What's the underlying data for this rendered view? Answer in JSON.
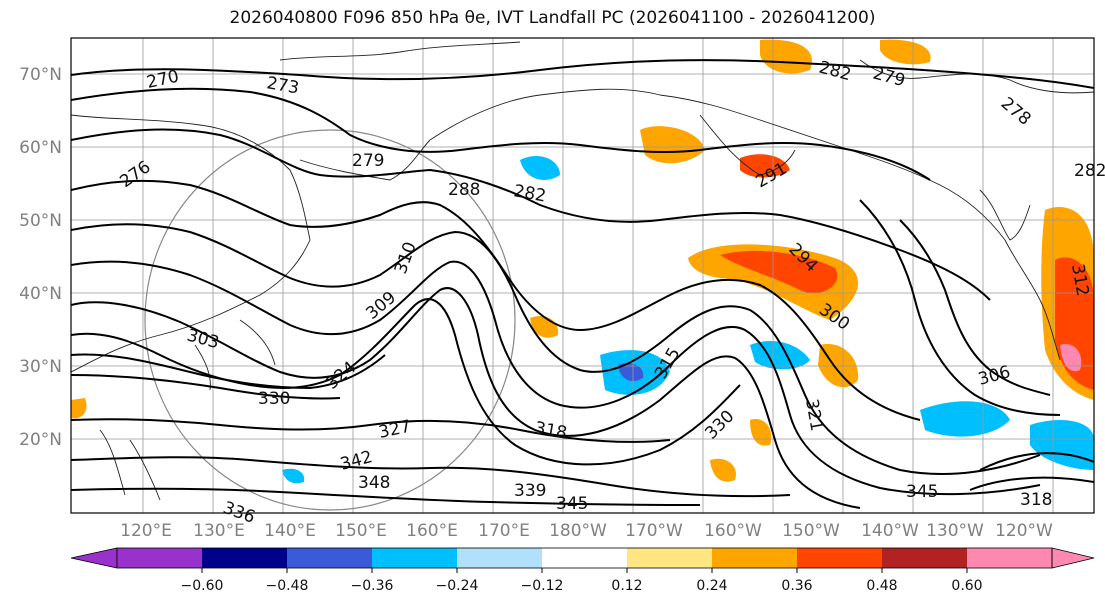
{
  "title_text": "2026040800 F096 850 hPa θe, IVT Landfall PC (2026041100 - 2026041200)",
  "lat_labels": [
    "70°N",
    "60°N",
    "50°N",
    "40°N",
    "30°N",
    "20°N"
  ],
  "lon_labels": [
    "120°E",
    "130°E",
    "140°E",
    "150°E",
    "160°E",
    "170°E",
    "180°W",
    "170°W",
    "160°W",
    "150°W",
    "140°W",
    "130°W",
    "120°W"
  ],
  "contour_labels": [
    "270",
    "273",
    "276",
    "279",
    "282",
    "282",
    "282",
    "279",
    "278",
    "288",
    "294",
    "291",
    "300",
    "303",
    "306",
    "309",
    "310",
    "312",
    "315",
    "318",
    "318",
    "321",
    "324",
    "327",
    "330",
    "330",
    "336",
    "339",
    "342",
    "345",
    "345",
    "348"
  ],
  "colorbar": {
    "ticks": [
      "−0.60",
      "−0.48",
      "−0.36",
      "−0.24",
      "−0.12",
      "0.12",
      "0.24",
      "0.36",
      "0.48",
      "0.60"
    ],
    "colors": [
      "#9932cc",
      "#00008b",
      "#3a5bd9",
      "#00bfff",
      "#b0e0fa",
      "#ffffff",
      "#ffe680",
      "#ffa500",
      "#ff4500",
      "#b22222",
      "#ff88b0",
      "#ff88b0"
    ]
  },
  "icons": [
    "map-frame",
    "coastline",
    "contour-line",
    "shading-patch"
  ]
}
